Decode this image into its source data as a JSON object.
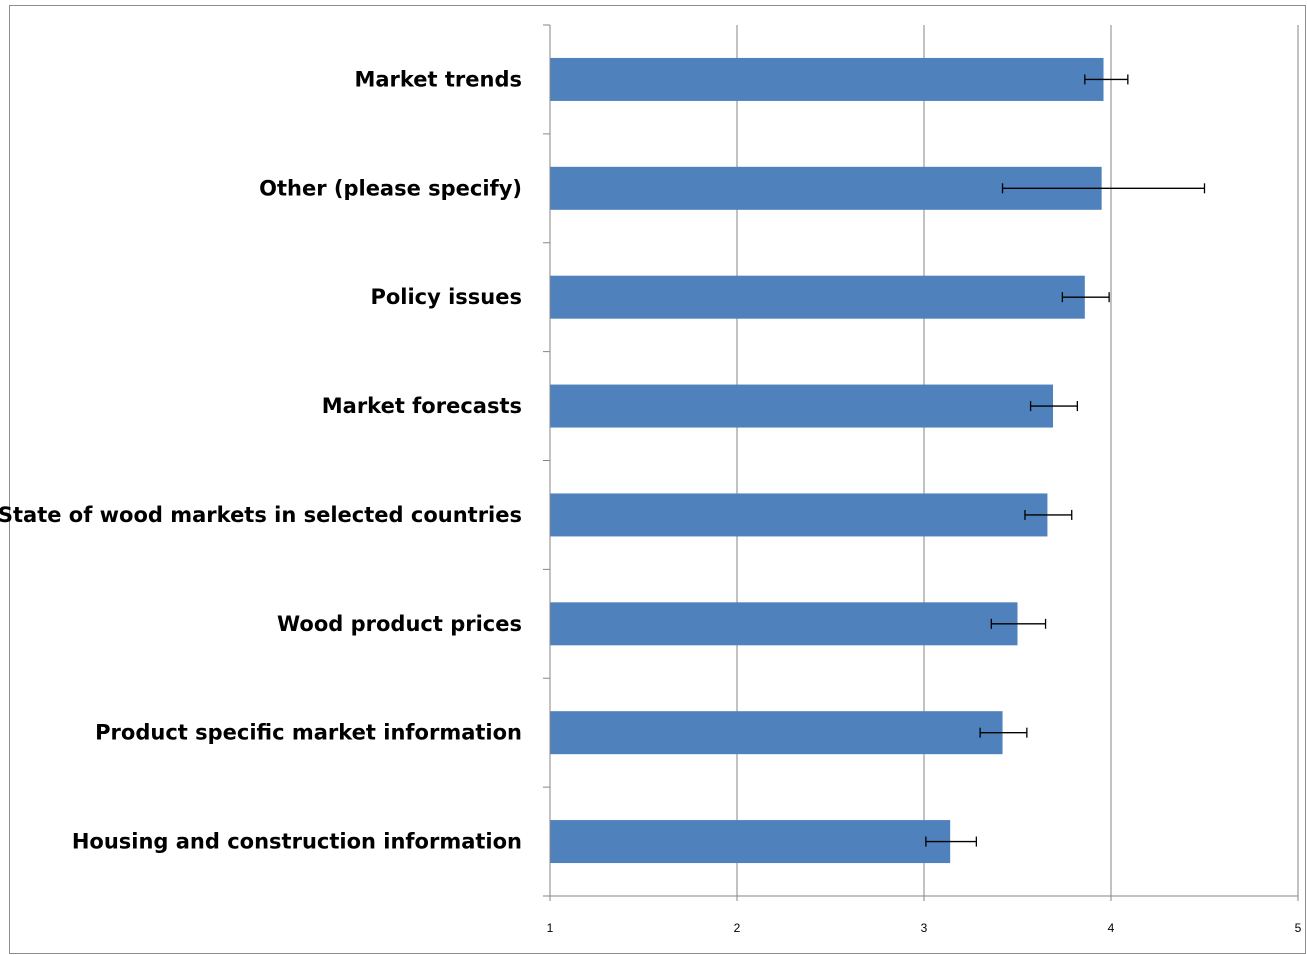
{
  "chart_data": {
    "type": "bar",
    "orientation": "horizontal",
    "categories": [
      "Market trends",
      "Other (please specify)",
      "Policy issues",
      "Market forecasts",
      "State of wood markets in selected countries",
      "Wood product prices",
      "Product specific market information",
      "Housing and construction information"
    ],
    "values": [
      3.96,
      3.95,
      3.86,
      3.69,
      3.66,
      3.5,
      3.42,
      3.14
    ],
    "error_low": [
      3.86,
      3.42,
      3.74,
      3.57,
      3.54,
      3.36,
      3.3,
      3.01
    ],
    "error_high": [
      4.09,
      4.5,
      3.99,
      3.82,
      3.79,
      3.65,
      3.55,
      3.28
    ],
    "xlim": [
      1,
      5
    ],
    "xticks": [
      "1",
      "2",
      "3",
      "4",
      "5"
    ],
    "grid": "vertical",
    "legend": "none",
    "colors": {
      "bar": "#4f81bd",
      "grid": "#868686",
      "error": "#000000"
    }
  }
}
